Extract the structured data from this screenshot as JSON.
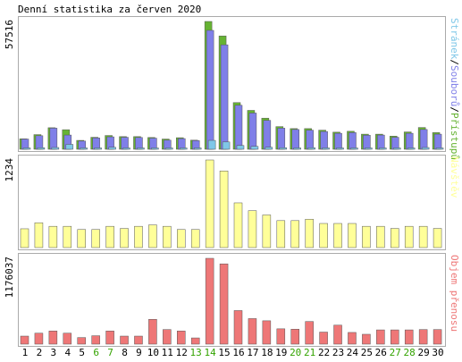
{
  "title": "Denní statistika za červen 2020",
  "colors": {
    "hits": "#66b333",
    "files": "#7f7fe8",
    "pages": "#7fc7e8",
    "visits": "#ffff99",
    "kbytes": "#ee7777",
    "frame": "#aaaaaa",
    "weekday_label": "#000000",
    "weekend_label": "#33a300",
    "bar_stroke": "#555555"
  },
  "chart_data": [
    {
      "type": "bar",
      "name": "hits-files-pages",
      "ymax_label": "57516",
      "ylim": [
        0,
        57516
      ],
      "right_label": {
        "parts": [
          {
            "text": "Stránek",
            "color": "pages"
          },
          {
            "text": "/",
            "color": "separator"
          },
          {
            "text": "Souborů",
            "color": "files"
          },
          {
            "text": "/",
            "color": "separator"
          },
          {
            "text": "Přístupů",
            "color": "hits"
          }
        ]
      },
      "categories": [
        "1",
        "2",
        "3",
        "4",
        "5",
        "6",
        "7",
        "8",
        "9",
        "10",
        "11",
        "12",
        "13",
        "14",
        "15",
        "16",
        "17",
        "18",
        "19",
        "20",
        "21",
        "22",
        "23",
        "24",
        "25",
        "26",
        "27",
        "28",
        "29",
        "30"
      ],
      "series": [
        {
          "name": "Přístupů",
          "values": [
            4700,
            6600,
            9700,
            8800,
            4000,
            5400,
            6200,
            5700,
            5700,
            5300,
            4600,
            5200,
            4100,
            57516,
            51000,
            21000,
            17500,
            14000,
            10200,
            9300,
            9300,
            8600,
            7700,
            8100,
            6800,
            6800,
            5900,
            7800,
            9800,
            7500
          ]
        },
        {
          "name": "Souborů",
          "values": [
            4600,
            6100,
            9500,
            6400,
            3700,
            5100,
            5600,
            5400,
            5300,
            5000,
            4100,
            4800,
            3900,
            53500,
            47000,
            19800,
            16300,
            13000,
            9500,
            8900,
            8600,
            8000,
            7200,
            7500,
            6300,
            6400,
            5400,
            7200,
            8900,
            6800
          ]
        },
        {
          "name": "Stránek",
          "values": [
            400,
            700,
            800,
            2200,
            500,
            300,
            900,
            400,
            400,
            600,
            500,
            600,
            200,
            4000,
            3300,
            1700,
            1300,
            900,
            700,
            600,
            700,
            500,
            400,
            500,
            400,
            400,
            300,
            500,
            800,
            600
          ]
        }
      ]
    },
    {
      "type": "bar",
      "name": "visits",
      "ymax_label": "1234",
      "ylim": [
        0,
        1234
      ],
      "right_label": {
        "parts": [
          {
            "text": "Návštěv",
            "color": "visits"
          }
        ]
      },
      "categories": [
        "1",
        "2",
        "3",
        "4",
        "5",
        "6",
        "7",
        "8",
        "9",
        "10",
        "11",
        "12",
        "13",
        "14",
        "15",
        "16",
        "17",
        "18",
        "19",
        "20",
        "21",
        "22",
        "23",
        "24",
        "25",
        "26",
        "27",
        "28",
        "29",
        "30"
      ],
      "series": [
        {
          "name": "Návštěv",
          "values": [
            265,
            350,
            300,
            300,
            255,
            255,
            300,
            270,
            300,
            320,
            300,
            255,
            255,
            1234,
            1080,
            630,
            520,
            460,
            380,
            380,
            400,
            340,
            340,
            340,
            300,
            300,
            270,
            300,
            300,
            270
          ]
        }
      ]
    },
    {
      "type": "bar",
      "name": "kbytes",
      "ymax_label": "1176037",
      "ylim": [
        0,
        1176037
      ],
      "right_label": {
        "parts": [
          {
            "text": "Objem přenosu",
            "color": "kbytes"
          }
        ]
      },
      "categories": [
        "1",
        "2",
        "3",
        "4",
        "5",
        "6",
        "7",
        "8",
        "9",
        "10",
        "11",
        "12",
        "13",
        "14",
        "15",
        "16",
        "17",
        "18",
        "19",
        "20",
        "21",
        "22",
        "23",
        "24",
        "25",
        "26",
        "27",
        "28",
        "29",
        "30"
      ],
      "series": [
        {
          "name": "Objem přenosu",
          "values": [
            110000,
            150000,
            180000,
            150000,
            90000,
            115000,
            180000,
            110000,
            110000,
            340000,
            200000,
            180000,
            85000,
            1176037,
            1100000,
            460000,
            350000,
            320000,
            210000,
            205000,
            310000,
            165000,
            260000,
            160000,
            135000,
            195000,
            195000,
            195000,
            200000,
            200000
          ]
        }
      ]
    }
  ],
  "x_labels": {
    "values": [
      "1",
      "2",
      "3",
      "4",
      "5",
      "6",
      "7",
      "8",
      "9",
      "10",
      "11",
      "12",
      "13",
      "14",
      "15",
      "16",
      "17",
      "18",
      "19",
      "20",
      "21",
      "22",
      "23",
      "24",
      "25",
      "26",
      "27",
      "28",
      "29",
      "30"
    ],
    "weekend": [
      "6",
      "7",
      "13",
      "14",
      "20",
      "21",
      "27",
      "28"
    ]
  }
}
